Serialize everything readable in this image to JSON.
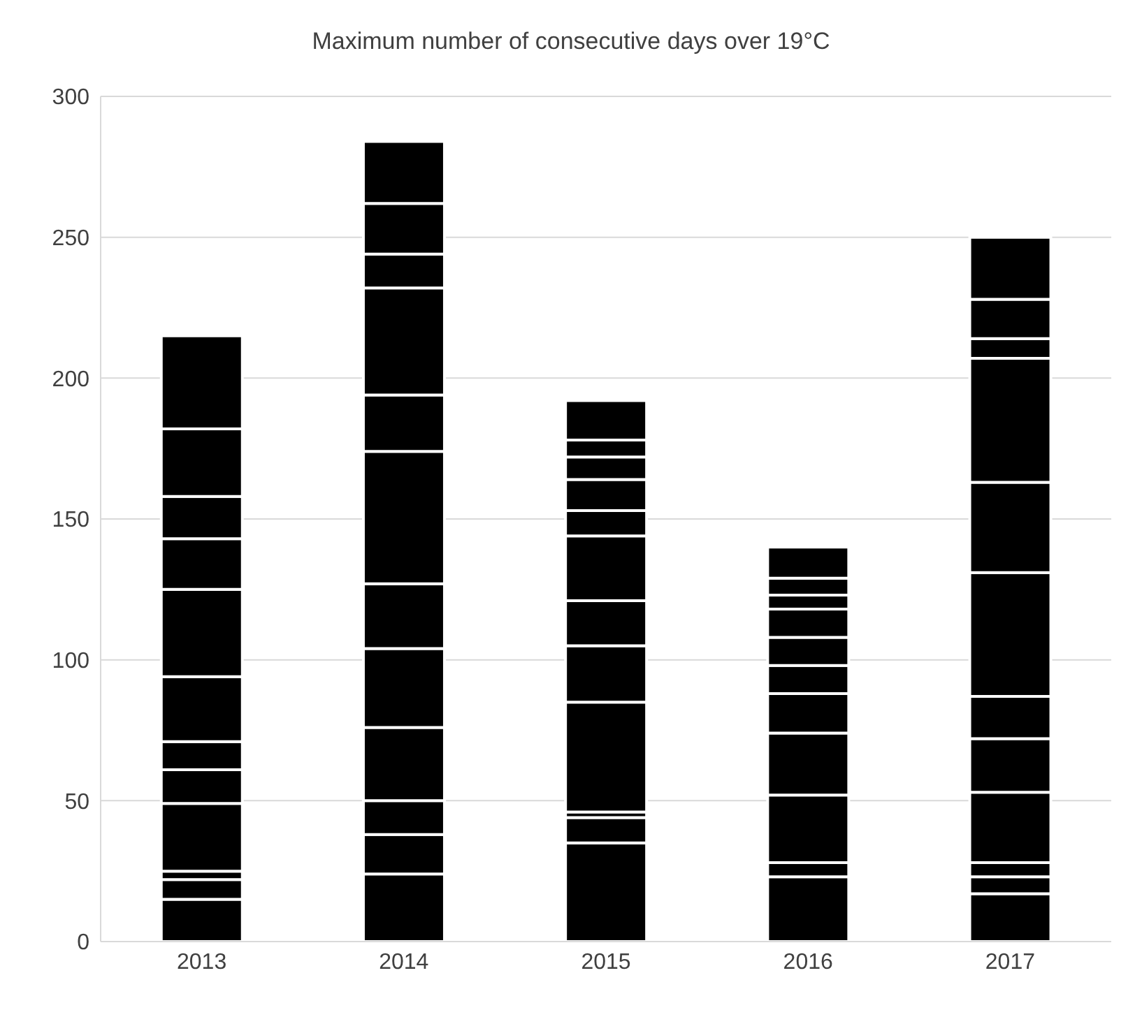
{
  "chart_data": {
    "type": "bar",
    "title": "Maximum number of consecutive days over 19°C",
    "categories": [
      "2013",
      "2014",
      "2015",
      "2016",
      "2017"
    ],
    "stacked": true,
    "series": [
      {
        "color": "#000000",
        "values": [
          15,
          24,
          35,
          23,
          17
        ]
      },
      {
        "color": "#000000",
        "values": [
          7,
          14,
          9,
          5,
          6
        ]
      },
      {
        "color": "#000000",
        "values": [
          3,
          12,
          2,
          24,
          5
        ]
      },
      {
        "color": "#000000",
        "values": [
          24,
          26,
          39,
          22,
          25
        ]
      },
      {
        "color": "#000000",
        "values": [
          12,
          28,
          20,
          14,
          19
        ]
      },
      {
        "color": "#000000",
        "values": [
          10,
          23,
          16,
          10,
          15
        ]
      },
      {
        "color": "#000000",
        "values": [
          23,
          47,
          23,
          10,
          44
        ]
      },
      {
        "color": "#000000",
        "values": [
          31,
          20,
          9,
          10,
          32
        ]
      },
      {
        "color": "#000000",
        "values": [
          18,
          38,
          11,
          5,
          44
        ]
      },
      {
        "color": "#000000",
        "values": [
          15,
          12,
          8,
          6,
          7
        ]
      },
      {
        "color": "#000000",
        "values": [
          24,
          18,
          6,
          11,
          14
        ]
      },
      {
        "color": "#000000",
        "values": [
          33,
          22,
          14,
          null,
          22
        ]
      }
    ],
    "ylim": [
      0,
      300
    ],
    "yticks": [
      0,
      50,
      100,
      150,
      200,
      250,
      300
    ],
    "grid": "y"
  }
}
